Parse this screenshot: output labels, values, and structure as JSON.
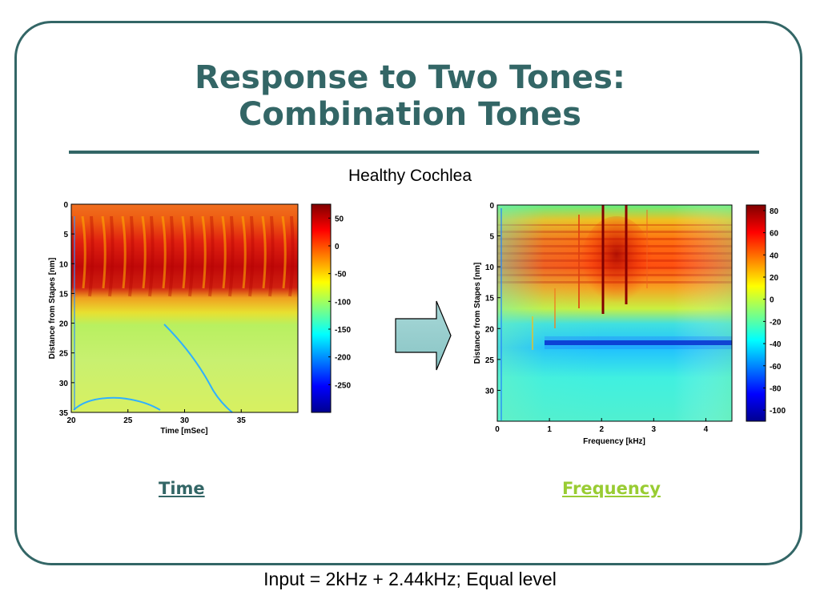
{
  "slide": {
    "title_line1": "Response to Two Tones:",
    "title_line2": "Combination Tones",
    "subtitle": "Healthy Cochlea",
    "link_time": "Time",
    "link_frequency": "Frequency",
    "footer": "Input = 2kHz + 2.44kHz; Equal level",
    "colors": {
      "accent": "#336666",
      "link_freq": "#99cc33"
    }
  },
  "chart_data": [
    {
      "type": "heatmap",
      "title": "",
      "xlabel": "Time [mSec]",
      "ylabel": "Distance from Stapes [nm]",
      "xlim": [
        20,
        40
      ],
      "ylim": [
        0,
        35
      ],
      "x_ticks": [
        20,
        25,
        30,
        35
      ],
      "y_ticks": [
        0,
        5,
        10,
        15,
        20,
        25,
        30,
        35
      ],
      "colorbar": {
        "ticks": [
          50,
          0,
          -50,
          -100,
          -150,
          -200,
          -250
        ],
        "range": [
          -300,
          75
        ]
      },
      "colormap": "jet"
    },
    {
      "type": "heatmap",
      "title": "",
      "xlabel": "Frequency [kHz]",
      "ylabel": "Distance from Stapes [nm]",
      "xlim": [
        0,
        4.5
      ],
      "ylim": [
        0,
        35
      ],
      "x_ticks": [
        0,
        1,
        2,
        3,
        4
      ],
      "y_ticks": [
        0,
        5,
        10,
        15,
        20,
        25,
        30
      ],
      "colorbar": {
        "ticks": [
          80,
          60,
          40,
          20,
          0,
          -20,
          -40,
          -60,
          -80,
          -100
        ],
        "range": [
          -110,
          85
        ]
      },
      "colormap": "jet",
      "input_tones_khz": [
        2,
        2.44
      ]
    }
  ]
}
